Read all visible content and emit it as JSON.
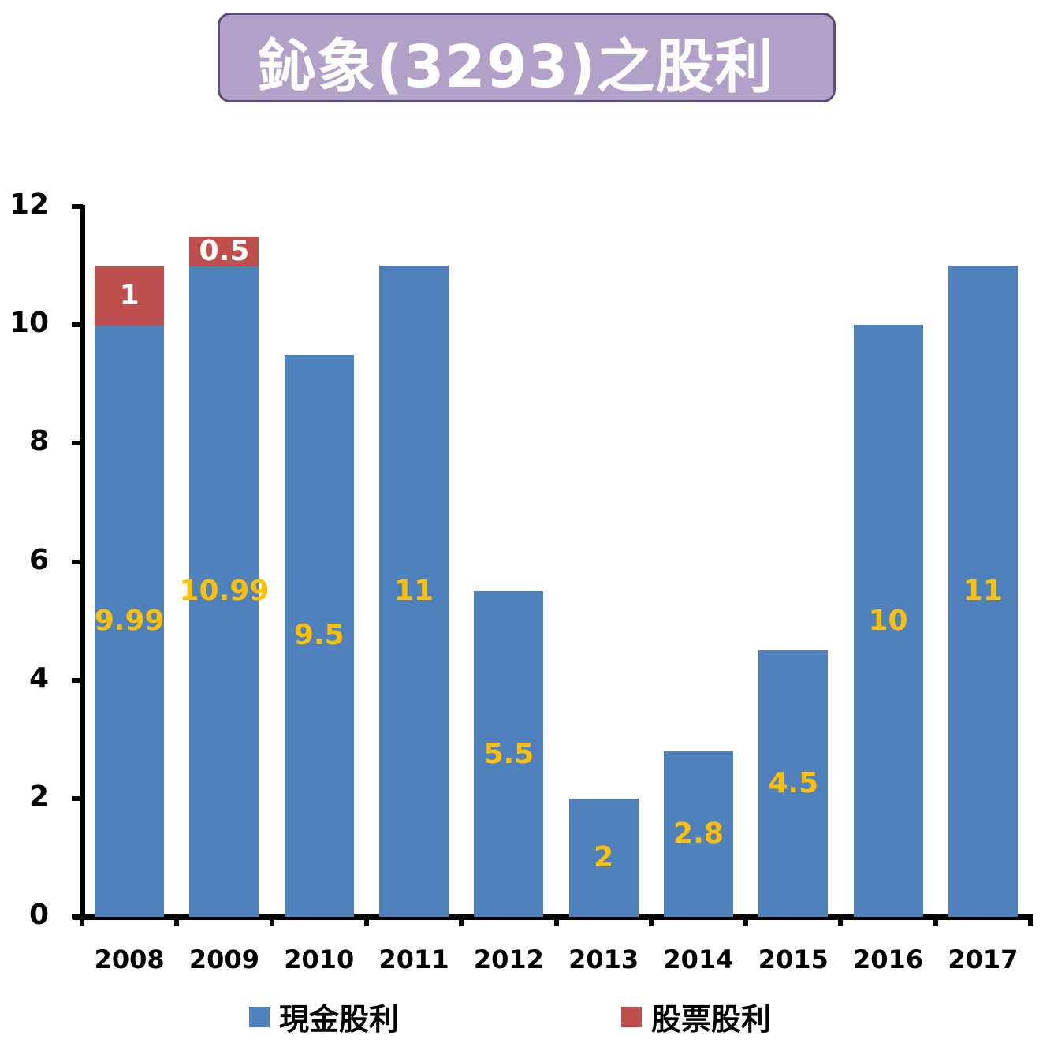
{
  "title": "鈊象(3293)之股利",
  "colors": {
    "title_bg": "#b1a0c7",
    "title_border": "#5f4b7a",
    "cash": "#4f81bd",
    "stock": "#c0504d",
    "cash_label": "#ffc000",
    "stock_label": "#ffffff"
  },
  "y_axis": {
    "ticks": [
      "0",
      "2",
      "4",
      "6",
      "8",
      "10",
      "12"
    ]
  },
  "x_axis": {
    "ticks": [
      "2008",
      "2009",
      "2010",
      "2011",
      "2012",
      "2013",
      "2014",
      "2015",
      "2016",
      "2017"
    ]
  },
  "legend": [
    {
      "label": "現金股利",
      "color": "#4f81bd"
    },
    {
      "label": "股票股利",
      "color": "#c0504d"
    }
  ],
  "bars": [
    {
      "year": "2008",
      "cash": 9.99,
      "cash_label": "9.99",
      "stock": 1,
      "stock_label": "1"
    },
    {
      "year": "2009",
      "cash": 10.99,
      "cash_label": "10.99",
      "stock": 0.5,
      "stock_label": "0.5"
    },
    {
      "year": "2010",
      "cash": 9.5,
      "cash_label": "9.5",
      "stock": 0,
      "stock_label": ""
    },
    {
      "year": "2011",
      "cash": 11,
      "cash_label": "11",
      "stock": 0,
      "stock_label": ""
    },
    {
      "year": "2012",
      "cash": 5.5,
      "cash_label": "5.5",
      "stock": 0,
      "stock_label": ""
    },
    {
      "year": "2013",
      "cash": 2,
      "cash_label": "2",
      "stock": 0,
      "stock_label": ""
    },
    {
      "year": "2014",
      "cash": 2.8,
      "cash_label": "2.8",
      "stock": 0,
      "stock_label": ""
    },
    {
      "year": "2015",
      "cash": 4.5,
      "cash_label": "4.5",
      "stock": 0,
      "stock_label": ""
    },
    {
      "year": "2016",
      "cash": 10,
      "cash_label": "10",
      "stock": 0,
      "stock_label": ""
    },
    {
      "year": "2017",
      "cash": 11,
      "cash_label": "11",
      "stock": 0,
      "stock_label": ""
    }
  ],
  "chart_data": {
    "type": "bar",
    "stacked": true,
    "title": "鈊象(3293)之股利",
    "categories": [
      "2008",
      "2009",
      "2010",
      "2011",
      "2012",
      "2013",
      "2014",
      "2015",
      "2016",
      "2017"
    ],
    "series": [
      {
        "name": "現金股利",
        "color": "#4f81bd",
        "values": [
          9.99,
          10.99,
          9.5,
          11,
          5.5,
          2,
          2.8,
          4.5,
          10,
          11
        ]
      },
      {
        "name": "股票股利",
        "color": "#c0504d",
        "values": [
          1,
          0.5,
          0,
          0,
          0,
          0,
          0,
          0,
          0,
          0
        ]
      }
    ],
    "data_labels": {
      "現金股利": [
        "9.99",
        "10.99",
        "9.5",
        "11",
        "5.5",
        "2",
        "2.8",
        "4.5",
        "10",
        "11"
      ],
      "股票股利": [
        "1",
        "0.5",
        "",
        "",
        "",
        "",
        "",
        "",
        "",
        ""
      ]
    },
    "xlabel": "",
    "ylabel": "",
    "ylim": [
      0,
      12
    ],
    "yticks": [
      0,
      2,
      4,
      6,
      8,
      10,
      12
    ],
    "grid": false,
    "legend_position": "bottom"
  }
}
